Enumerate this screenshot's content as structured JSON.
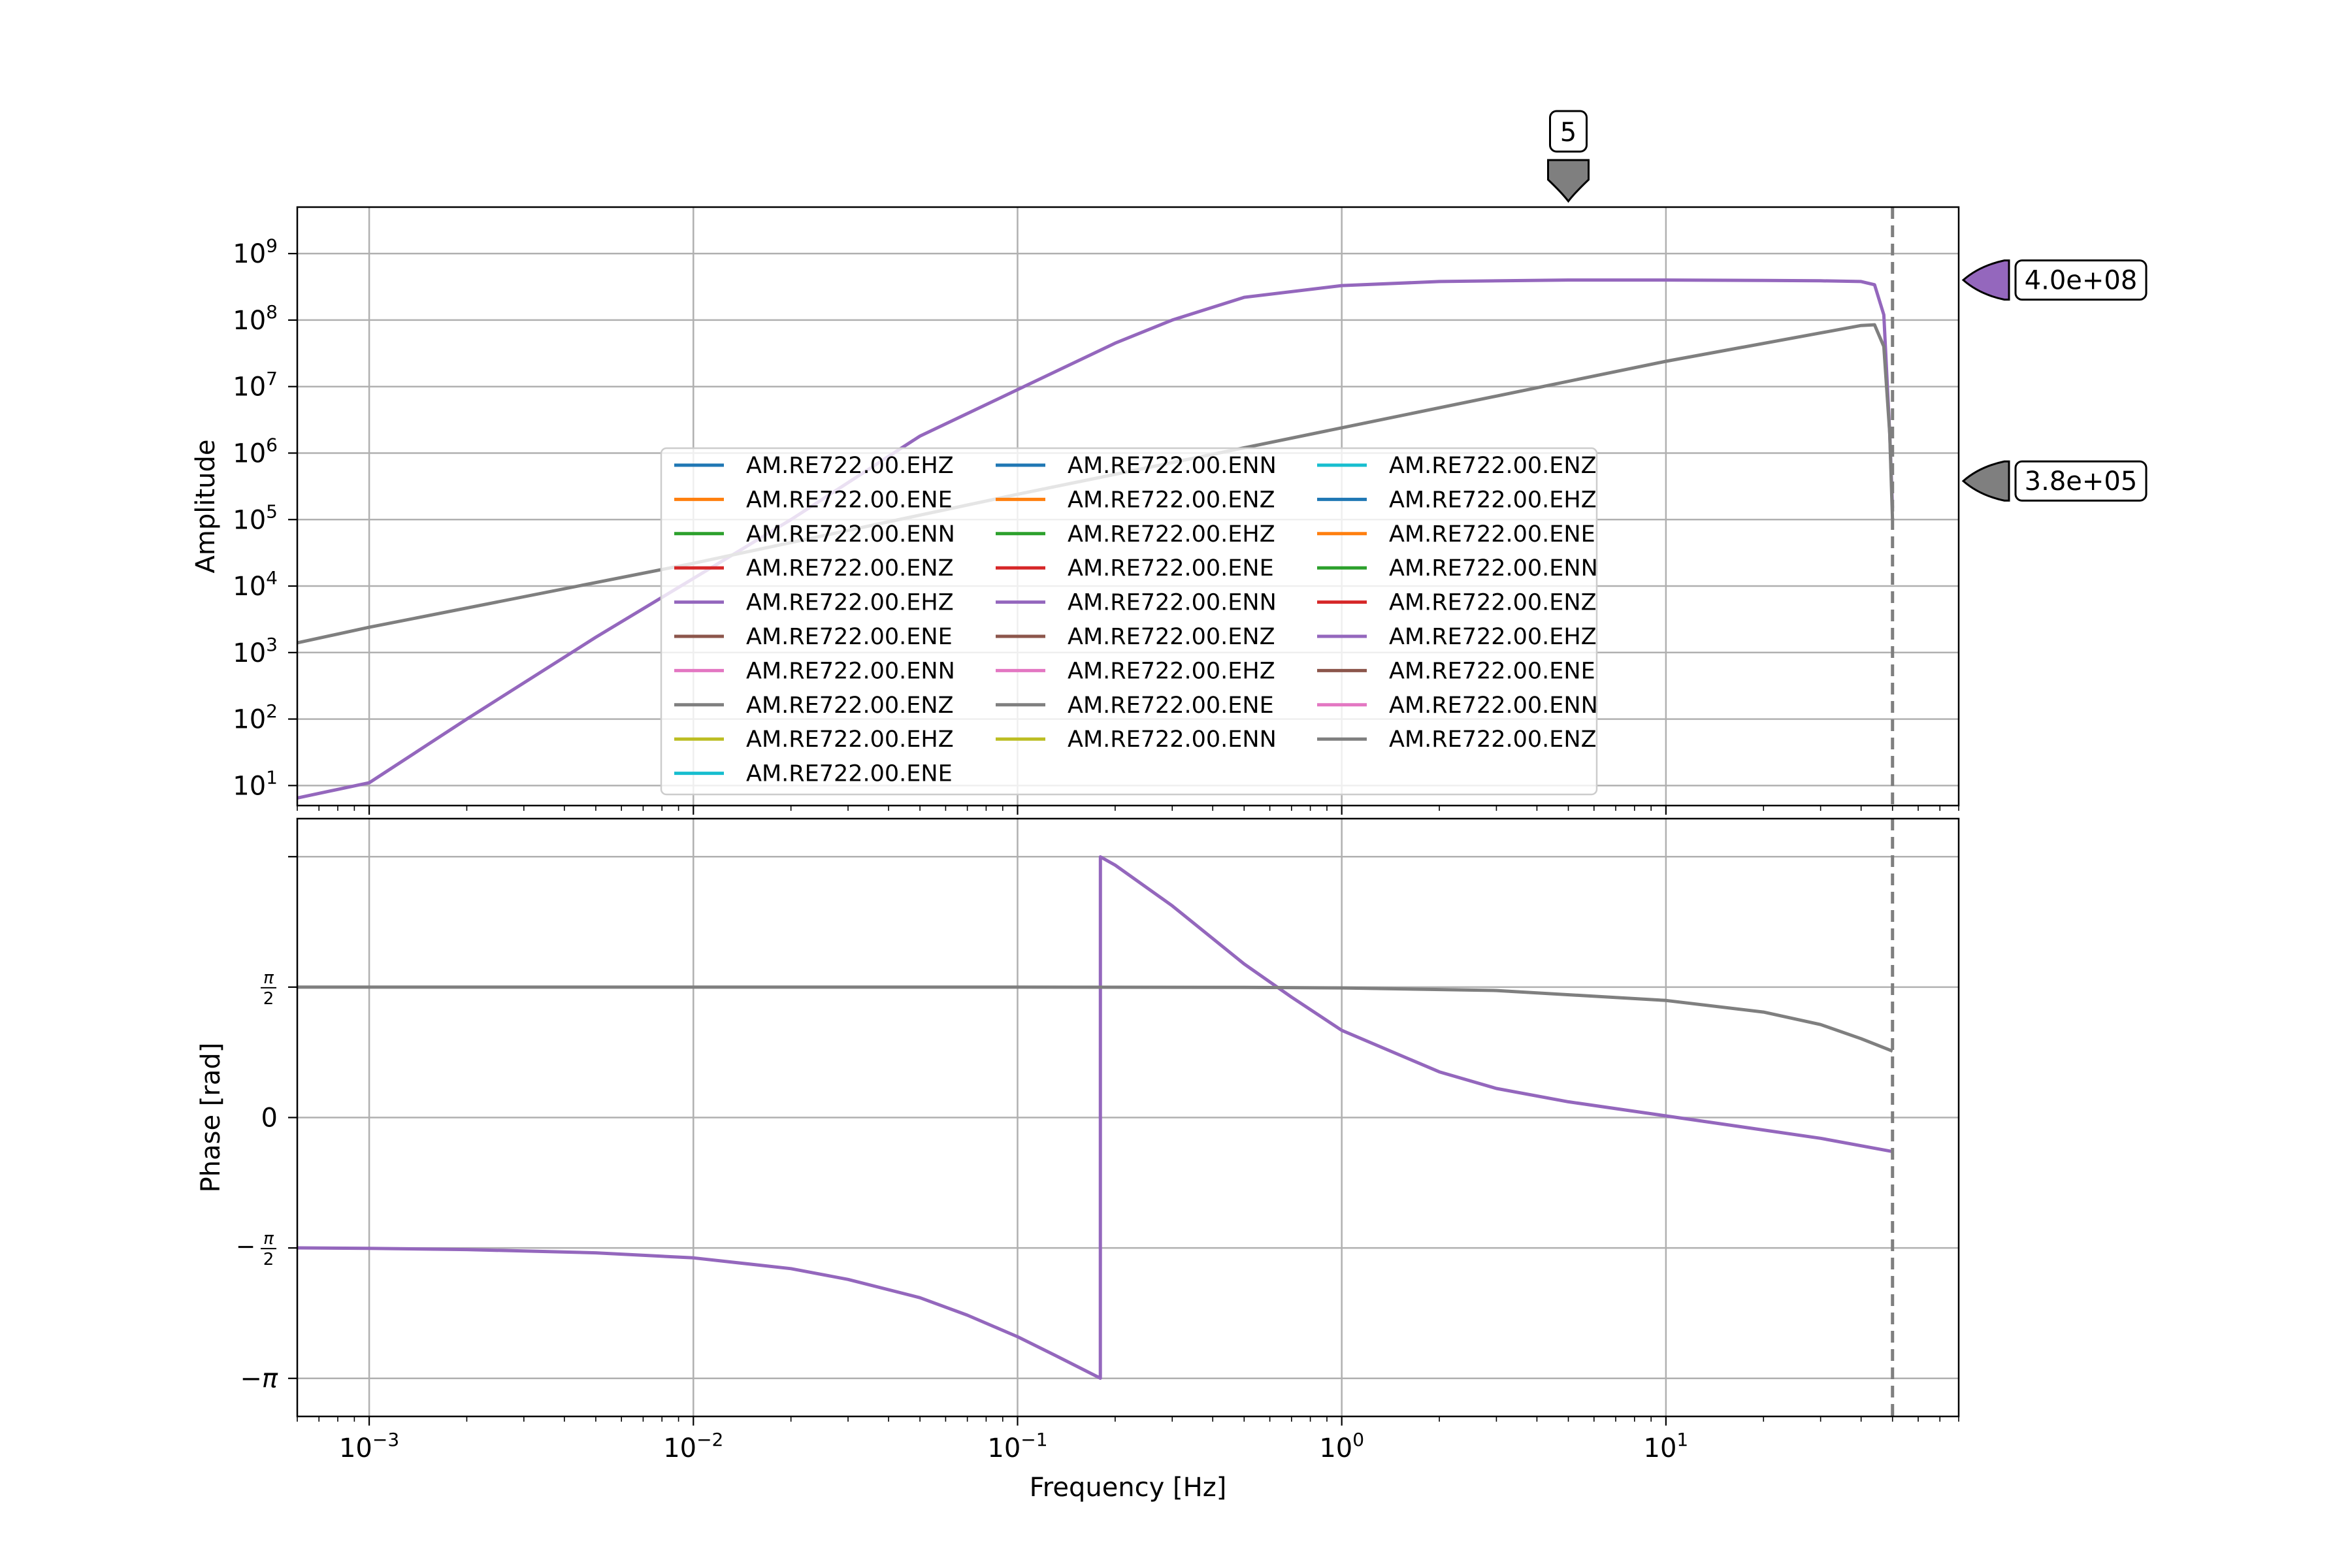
{
  "colors": {
    "purple": "#9467bd",
    "gray": "#7f7f7f",
    "grid": "#b0b0b0",
    "legend_palette": [
      "#1f77b4",
      "#ff7f0e",
      "#2ca02c",
      "#d62728",
      "#9467bd",
      "#8c564b",
      "#e377c2",
      "#7f7f7f",
      "#bcbd22",
      "#17becf"
    ]
  },
  "chart_data": [
    {
      "type": "line",
      "panel": "amplitude",
      "ylabel": "Amplitude",
      "xscale": "log",
      "yscale": "log",
      "xlim": [
        0.0006,
        80
      ],
      "ylim": [
        5,
        5000000000
      ],
      "grid": true,
      "x_ticks": [
        {
          "value": 0.001,
          "base": "10",
          "exp": "−3"
        },
        {
          "value": 0.01,
          "base": "10",
          "exp": "−2"
        },
        {
          "value": 0.1,
          "base": "10",
          "exp": "−1"
        },
        {
          "value": 1,
          "base": "10",
          "exp": "0"
        },
        {
          "value": 10,
          "base": "10",
          "exp": "1"
        }
      ],
      "y_ticks": [
        {
          "value": 10,
          "base": "10",
          "exp": "1"
        },
        {
          "value": 100,
          "base": "10",
          "exp": "2"
        },
        {
          "value": 1000,
          "base": "10",
          "exp": "3"
        },
        {
          "value": 10000,
          "base": "10",
          "exp": "4"
        },
        {
          "value": 100000,
          "base": "10",
          "exp": "5"
        },
        {
          "value": 1000000,
          "base": "10",
          "exp": "6"
        },
        {
          "value": 10000000,
          "base": "10",
          "exp": "7"
        },
        {
          "value": 100000000,
          "base": "10",
          "exp": "8"
        },
        {
          "value": 1000000000,
          "base": "10",
          "exp": "9"
        }
      ],
      "nyquist_hz": 50,
      "series": [
        {
          "color": "purple",
          "x": [
            0.0006,
            0.001,
            0.002,
            0.005,
            0.01,
            0.02,
            0.05,
            0.1,
            0.2,
            0.3,
            0.5,
            1,
            2,
            5,
            10,
            20,
            30,
            40,
            44,
            47,
            49,
            50
          ],
          "y": [
            6.5,
            11,
            100,
            1700,
            13000,
            100000,
            1800000,
            9000000,
            45000000,
            100000000,
            220000000,
            330000000,
            380000000,
            400000000,
            400000000,
            395000000,
            390000000,
            380000000,
            340000000,
            120000000,
            2000000,
            150000
          ]
        },
        {
          "color": "gray",
          "x": [
            0.0006,
            0.001,
            0.01,
            0.1,
            1,
            10,
            30,
            40,
            44,
            47,
            49,
            50
          ],
          "y": [
            1400,
            2400,
            22000,
            240000,
            2400000,
            24000000,
            64000000,
            83000000,
            85000000,
            40000000,
            2000000,
            100000
          ]
        }
      ],
      "markers": [
        {
          "label": "5",
          "x": 5,
          "position": "top",
          "color": "gray"
        },
        {
          "label": "4.0e+08",
          "y": 400000000,
          "position": "right",
          "color": "purple"
        },
        {
          "label": "3.8e+05",
          "y": 380000,
          "position": "right",
          "color": "gray"
        }
      ],
      "legend": {
        "placement": "center",
        "columns": [
          [
            {
              "label": "AM.RE722.00.EHZ",
              "c": 0
            },
            {
              "label": "AM.RE722.00.ENE",
              "c": 1
            },
            {
              "label": "AM.RE722.00.ENN",
              "c": 2
            },
            {
              "label": "AM.RE722.00.ENZ",
              "c": 3
            },
            {
              "label": "AM.RE722.00.EHZ",
              "c": 4
            },
            {
              "label": "AM.RE722.00.ENE",
              "c": 5
            },
            {
              "label": "AM.RE722.00.ENN",
              "c": 6
            },
            {
              "label": "AM.RE722.00.ENZ",
              "c": 7
            },
            {
              "label": "AM.RE722.00.EHZ",
              "c": 8
            },
            {
              "label": "AM.RE722.00.ENE",
              "c": 9
            }
          ],
          [
            {
              "label": "AM.RE722.00.ENN",
              "c": 0
            },
            {
              "label": "AM.RE722.00.ENZ",
              "c": 1
            },
            {
              "label": "AM.RE722.00.EHZ",
              "c": 2
            },
            {
              "label": "AM.RE722.00.ENE",
              "c": 3
            },
            {
              "label": "AM.RE722.00.ENN",
              "c": 4
            },
            {
              "label": "AM.RE722.00.ENZ",
              "c": 5
            },
            {
              "label": "AM.RE722.00.EHZ",
              "c": 6
            },
            {
              "label": "AM.RE722.00.ENE",
              "c": 7
            },
            {
              "label": "AM.RE722.00.ENN",
              "c": 8
            }
          ],
          [
            {
              "label": "AM.RE722.00.ENZ",
              "c": 9
            },
            {
              "label": "AM.RE722.00.EHZ",
              "c": 0
            },
            {
              "label": "AM.RE722.00.ENE",
              "c": 1
            },
            {
              "label": "AM.RE722.00.ENN",
              "c": 2
            },
            {
              "label": "AM.RE722.00.ENZ",
              "c": 3
            },
            {
              "label": "AM.RE722.00.EHZ",
              "c": 4
            },
            {
              "label": "AM.RE722.00.ENE",
              "c": 5
            },
            {
              "label": "AM.RE722.00.ENN",
              "c": 6
            },
            {
              "label": "AM.RE722.00.ENZ",
              "c": 7
            }
          ]
        ]
      }
    },
    {
      "type": "line",
      "panel": "phase",
      "xlabel": "Frequency [Hz]",
      "ylabel": "Phase [rad]",
      "xscale": "log",
      "xlim": [
        0.0006,
        80
      ],
      "ylim": [
        -3.6,
        3.6
      ],
      "grid": true,
      "x_ticks": [
        {
          "value": 0.001,
          "base": "10",
          "exp": "−3"
        },
        {
          "value": 0.01,
          "base": "10",
          "exp": "−2"
        },
        {
          "value": 0.1,
          "base": "10",
          "exp": "−1"
        },
        {
          "value": 1,
          "base": "10",
          "exp": "0"
        },
        {
          "value": 10,
          "base": "10",
          "exp": "1"
        }
      ],
      "y_ticks": [
        {
          "value": -3.1416,
          "label": "−π"
        },
        {
          "value": -1.5708,
          "label": "−π/2"
        },
        {
          "value": 0,
          "label": "0"
        },
        {
          "value": 1.5708,
          "label": "π/2"
        },
        {
          "value": 3.1416,
          "label": ""
        }
      ],
      "nyquist_hz": 50,
      "series": [
        {
          "color": "purple",
          "x": [
            0.0006,
            0.001,
            0.002,
            0.005,
            0.01,
            0.02,
            0.03,
            0.05,
            0.07,
            0.1,
            0.13,
            0.18,
            0.1801,
            0.2,
            0.3,
            0.5,
            0.7,
            1,
            2,
            3,
            5,
            10,
            20,
            30,
            50
          ],
          "y": [
            -1.57,
            -1.575,
            -1.59,
            -1.63,
            -1.69,
            -1.82,
            -1.95,
            -2.17,
            -2.38,
            -2.64,
            -2.86,
            -3.14,
            3.14,
            3.04,
            2.55,
            1.85,
            1.45,
            1.05,
            0.55,
            0.35,
            0.19,
            0.02,
            -0.15,
            -0.25,
            -0.41
          ]
        },
        {
          "color": "gray",
          "x": [
            0.0006,
            0.1,
            0.5,
            1,
            3,
            10,
            20,
            30,
            40,
            50
          ],
          "y": [
            1.5708,
            1.5706,
            1.568,
            1.561,
            1.53,
            1.41,
            1.27,
            1.12,
            0.95,
            0.8
          ]
        }
      ]
    }
  ]
}
